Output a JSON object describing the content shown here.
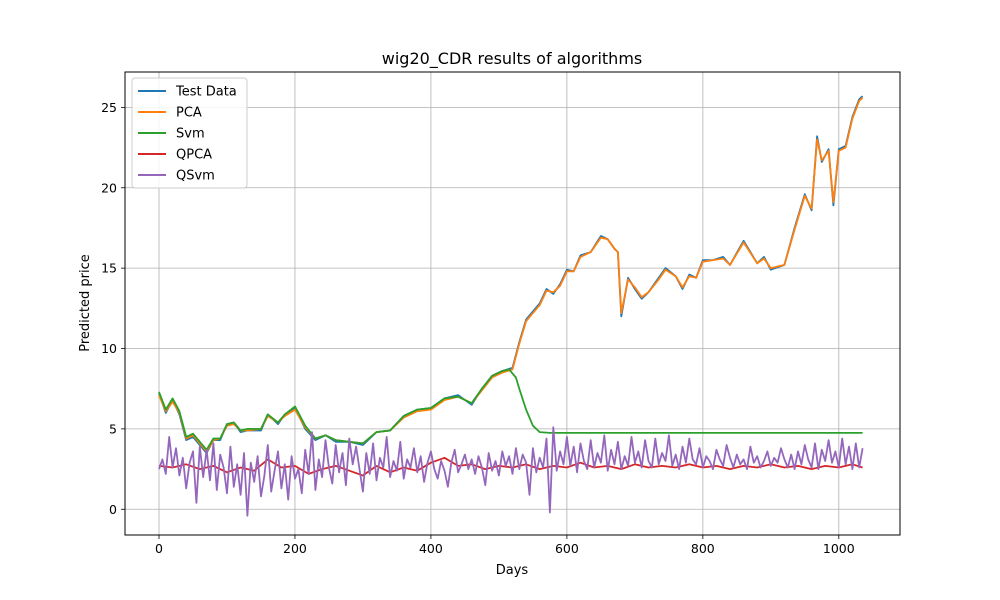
{
  "chart_data": {
    "type": "line",
    "title": "wig20_CDR results of algorithms",
    "xlabel": "Days",
    "ylabel": "Predicted price",
    "xlim": [
      -50,
      1090
    ],
    "ylim": [
      -1.6,
      27.2
    ],
    "xticks": [
      0,
      200,
      400,
      600,
      800,
      1000
    ],
    "yticks": [
      0,
      5,
      10,
      15,
      20,
      25
    ],
    "grid": true,
    "legend_position": "top-left",
    "series": [
      {
        "name": "Test Data",
        "color": "#1f77b4",
        "x": [
          0,
          10,
          20,
          30,
          40,
          50,
          60,
          70,
          80,
          90,
          100,
          110,
          120,
          130,
          150,
          160,
          175,
          185,
          200,
          215,
          230,
          245,
          260,
          280,
          300,
          320,
          340,
          360,
          380,
          400,
          420,
          440,
          460,
          475,
          490,
          505,
          520,
          530,
          540,
          550,
          560,
          570,
          580,
          590,
          600,
          610,
          620,
          635,
          650,
          660,
          670,
          675,
          680,
          690,
          700,
          710,
          720,
          735,
          745,
          760,
          770,
          780,
          790,
          800,
          815,
          830,
          840,
          860,
          880,
          890,
          900,
          920,
          935,
          950,
          960,
          968,
          975,
          985,
          992,
          1000,
          1010,
          1020,
          1030,
          1035
        ],
        "y": [
          7.2,
          6.0,
          6.8,
          5.9,
          4.3,
          4.5,
          4.0,
          3.5,
          4.3,
          4.3,
          5.3,
          5.4,
          4.8,
          4.9,
          4.9,
          5.9,
          5.3,
          5.9,
          6.3,
          5.0,
          4.3,
          4.6,
          4.2,
          4.2,
          4.0,
          4.8,
          4.9,
          5.8,
          6.2,
          6.3,
          6.9,
          7.1,
          6.5,
          7.5,
          8.3,
          8.6,
          8.8,
          10.4,
          11.8,
          12.3,
          12.8,
          13.7,
          13.4,
          14.0,
          14.9,
          14.8,
          15.8,
          16.0,
          17.0,
          16.8,
          16.2,
          16.0,
          12.0,
          14.4,
          13.7,
          13.1,
          13.5,
          14.4,
          15.0,
          14.5,
          13.7,
          14.6,
          14.4,
          15.5,
          15.5,
          15.7,
          15.2,
          16.7,
          15.3,
          15.7,
          14.9,
          15.2,
          17.5,
          19.6,
          18.6,
          23.2,
          21.6,
          22.4,
          18.9,
          22.4,
          22.6,
          24.4,
          25.5,
          25.7
        ]
      },
      {
        "name": "PCA",
        "color": "#ff7f0e",
        "x": [
          0,
          10,
          20,
          30,
          40,
          50,
          60,
          70,
          80,
          90,
          100,
          110,
          120,
          130,
          150,
          160,
          175,
          185,
          200,
          215,
          230,
          245,
          260,
          280,
          300,
          320,
          340,
          360,
          380,
          400,
          420,
          440,
          460,
          475,
          490,
          505,
          520,
          530,
          540,
          550,
          560,
          570,
          580,
          590,
          600,
          610,
          620,
          635,
          650,
          660,
          670,
          675,
          680,
          690,
          700,
          710,
          720,
          735,
          745,
          760,
          770,
          780,
          790,
          800,
          815,
          830,
          840,
          860,
          880,
          890,
          900,
          920,
          935,
          950,
          960,
          968,
          975,
          985,
          992,
          1000,
          1010,
          1020,
          1030,
          1035
        ],
        "y": [
          7.1,
          6.1,
          6.7,
          6.0,
          4.4,
          4.6,
          4.1,
          3.6,
          4.3,
          4.4,
          5.2,
          5.3,
          4.9,
          4.9,
          5.0,
          5.8,
          5.4,
          5.8,
          6.2,
          5.1,
          4.4,
          4.6,
          4.3,
          4.2,
          4.1,
          4.8,
          4.9,
          5.7,
          6.1,
          6.2,
          6.8,
          7.0,
          6.6,
          7.4,
          8.2,
          8.5,
          8.7,
          10.3,
          11.7,
          12.2,
          12.7,
          13.6,
          13.5,
          13.9,
          14.8,
          14.8,
          15.7,
          16.0,
          16.9,
          16.8,
          16.2,
          16.0,
          12.2,
          14.3,
          13.8,
          13.2,
          13.5,
          14.3,
          14.9,
          14.5,
          13.8,
          14.5,
          14.4,
          15.4,
          15.5,
          15.6,
          15.2,
          16.6,
          15.3,
          15.6,
          15.0,
          15.2,
          17.4,
          19.5,
          18.7,
          23.0,
          21.7,
          22.3,
          19.1,
          22.3,
          22.5,
          24.3,
          25.4,
          25.6
        ]
      },
      {
        "name": "Svm",
        "color": "#2ca02c",
        "x": [
          0,
          10,
          20,
          30,
          40,
          50,
          60,
          70,
          80,
          90,
          100,
          110,
          120,
          130,
          150,
          160,
          175,
          185,
          200,
          215,
          230,
          245,
          260,
          280,
          300,
          320,
          340,
          360,
          380,
          400,
          420,
          440,
          460,
          475,
          490,
          505,
          515,
          525,
          530,
          540,
          550,
          560,
          575,
          600,
          700,
          800,
          900,
          1000,
          1035
        ],
        "y": [
          7.3,
          6.2,
          6.9,
          6.1,
          4.5,
          4.7,
          4.2,
          3.7,
          4.4,
          4.4,
          5.3,
          5.4,
          4.9,
          5.0,
          5.0,
          5.9,
          5.4,
          5.9,
          6.4,
          5.2,
          4.4,
          4.6,
          4.3,
          4.2,
          4.1,
          4.8,
          4.9,
          5.8,
          6.2,
          6.3,
          6.9,
          7.0,
          6.6,
          7.5,
          8.3,
          8.6,
          8.7,
          8.2,
          7.5,
          6.2,
          5.2,
          4.8,
          4.75,
          4.75,
          4.75,
          4.75,
          4.75,
          4.75,
          4.75
        ]
      },
      {
        "name": "QPCA",
        "color": "#d62728",
        "x": [
          0,
          20,
          40,
          60,
          80,
          100,
          120,
          140,
          160,
          180,
          200,
          220,
          240,
          260,
          280,
          300,
          320,
          340,
          360,
          380,
          400,
          420,
          440,
          460,
          480,
          500,
          520,
          540,
          560,
          580,
          600,
          620,
          640,
          660,
          680,
          700,
          720,
          740,
          760,
          780,
          800,
          820,
          840,
          860,
          880,
          900,
          920,
          940,
          960,
          980,
          1000,
          1020,
          1035
        ],
        "y": [
          2.7,
          2.6,
          2.8,
          2.5,
          2.7,
          2.3,
          2.6,
          2.4,
          3.1,
          2.6,
          2.7,
          2.2,
          2.5,
          2.7,
          2.4,
          2.1,
          2.7,
          2.3,
          2.6,
          2.4,
          2.9,
          3.2,
          2.7,
          2.8,
          2.5,
          2.7,
          2.6,
          2.8,
          2.5,
          2.7,
          2.6,
          2.9,
          2.6,
          2.7,
          2.5,
          2.8,
          2.6,
          2.7,
          2.6,
          2.8,
          2.6,
          2.7,
          2.5,
          2.7,
          2.6,
          2.8,
          2.6,
          2.7,
          2.5,
          2.7,
          2.6,
          2.8,
          2.6
        ]
      },
      {
        "name": "QSvm",
        "color": "#9467bd",
        "x": [
          0,
          5,
          10,
          15,
          20,
          25,
          30,
          35,
          40,
          45,
          50,
          55,
          60,
          65,
          70,
          75,
          80,
          85,
          90,
          95,
          100,
          105,
          110,
          115,
          120,
          125,
          130,
          135,
          140,
          145,
          150,
          155,
          160,
          165,
          170,
          175,
          180,
          185,
          190,
          195,
          200,
          205,
          210,
          215,
          220,
          225,
          230,
          235,
          240,
          245,
          250,
          255,
          260,
          265,
          270,
          275,
          280,
          285,
          290,
          295,
          300,
          305,
          310,
          315,
          320,
          325,
          330,
          335,
          340,
          345,
          350,
          355,
          360,
          365,
          370,
          375,
          380,
          385,
          390,
          395,
          400,
          405,
          410,
          415,
          420,
          425,
          430,
          435,
          440,
          445,
          450,
          455,
          460,
          465,
          470,
          475,
          480,
          485,
          490,
          495,
          500,
          505,
          510,
          515,
          520,
          525,
          530,
          535,
          540,
          545,
          550,
          555,
          560,
          565,
          570,
          575,
          580,
          585,
          590,
          595,
          600,
          605,
          610,
          615,
          620,
          625,
          630,
          635,
          640,
          645,
          650,
          655,
          660,
          665,
          670,
          675,
          680,
          685,
          690,
          695,
          700,
          705,
          710,
          715,
          720,
          725,
          730,
          735,
          740,
          745,
          750,
          755,
          760,
          765,
          770,
          775,
          780,
          785,
          790,
          795,
          800,
          805,
          810,
          815,
          820,
          825,
          830,
          835,
          840,
          845,
          850,
          855,
          860,
          865,
          870,
          875,
          880,
          885,
          890,
          895,
          900,
          905,
          910,
          915,
          920,
          925,
          930,
          935,
          940,
          945,
          950,
          955,
          960,
          965,
          970,
          975,
          980,
          985,
          990,
          995,
          1000,
          1005,
          1010,
          1015,
          1020,
          1025,
          1030,
          1035
        ],
        "y": [
          2.5,
          3.1,
          2.2,
          4.5,
          2.6,
          3.8,
          2.1,
          3.2,
          1.3,
          2.9,
          3.6,
          0.4,
          3.9,
          2.0,
          3.7,
          1.8,
          4.1,
          1.2,
          3.4,
          2.6,
          1.0,
          3.9,
          1.4,
          2.8,
          0.9,
          3.5,
          -0.4,
          2.9,
          1.7,
          3.3,
          0.8,
          2.1,
          4.0,
          1.1,
          2.4,
          3.6,
          1.3,
          2.8,
          0.6,
          3.3,
          1.9,
          2.5,
          1.0,
          3.7,
          2.2,
          4.8,
          1.2,
          3.1,
          2.0,
          4.3,
          2.6,
          1.6,
          4.0,
          2.3,
          3.5,
          1.5,
          4.4,
          2.8,
          3.9,
          2.5,
          1.1,
          3.5,
          2.2,
          4.1,
          1.8,
          3.2,
          2.6,
          4.5,
          2.0,
          3.0,
          2.4,
          4.2,
          1.9,
          3.1,
          2.6,
          3.8,
          2.3,
          3.3,
          1.7,
          2.9,
          3.6,
          2.5,
          1.9,
          3.0,
          2.4,
          1.4,
          2.9,
          3.7,
          2.3,
          2.8,
          3.4,
          2.5,
          3.1,
          2.2,
          3.3,
          2.6,
          1.5,
          3.5,
          2.4,
          3.0,
          2.1,
          3.6,
          2.7,
          3.3,
          2.2,
          3.8,
          2.5,
          3.4,
          2.9,
          0.9,
          3.8,
          2.3,
          3.2,
          2.6,
          4.4,
          -0.2,
          5.1,
          2.4,
          3.6,
          2.8,
          4.5,
          2.7,
          3.9,
          2.3,
          4.1,
          3.0,
          2.5,
          4.3,
          2.6,
          3.5,
          2.9,
          4.6,
          2.4,
          3.7,
          2.8,
          4.2,
          2.5,
          3.3,
          2.7,
          4.5,
          2.9,
          3.6,
          2.6,
          4.3,
          3.0,
          2.6,
          4.4,
          2.8,
          3.5,
          3.0,
          4.6,
          2.7,
          3.4,
          2.5,
          3.9,
          2.9,
          4.4,
          3.1,
          2.8,
          3.8,
          2.6,
          3.3,
          3.0,
          2.5,
          3.7,
          3.1,
          2.7,
          4.0,
          3.2,
          2.6,
          3.4,
          2.8,
          3.1,
          2.5,
          3.9,
          2.9,
          3.3,
          2.6,
          3.0,
          3.6,
          2.7,
          3.2,
          2.9,
          3.8,
          3.1,
          2.6,
          3.4,
          2.5,
          3.6,
          2.8,
          4.0,
          3.1,
          2.6,
          4.1,
          2.5,
          3.7,
          3.0,
          4.3,
          2.9,
          3.6,
          2.6,
          4.4,
          2.8,
          3.9,
          2.5,
          4.1,
          2.6,
          3.8
        ]
      }
    ]
  }
}
